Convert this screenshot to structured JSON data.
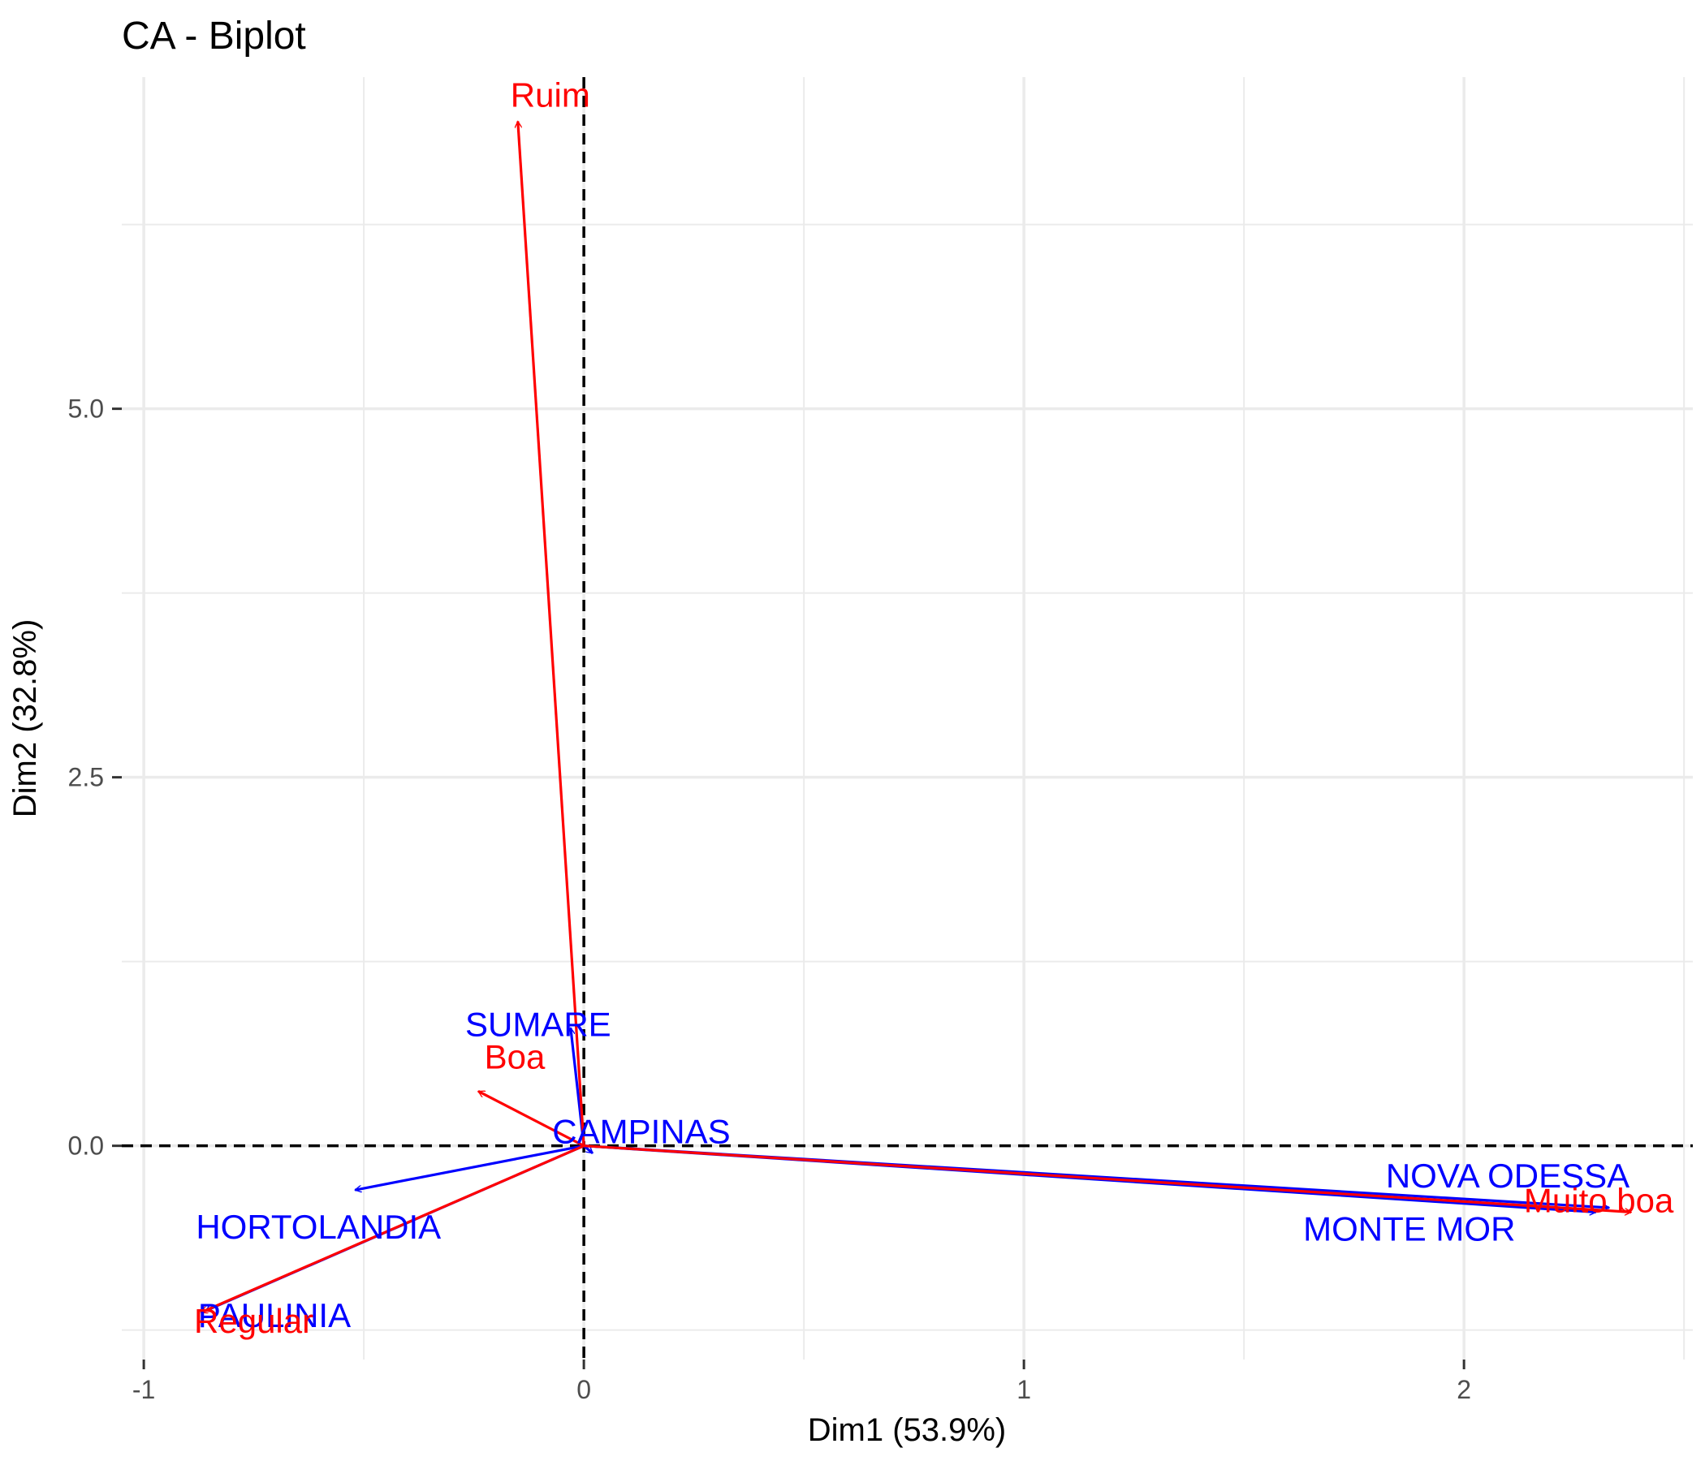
{
  "chart_data": {
    "type": "scatter",
    "title": "CA - Biplot",
    "xlabel": "Dim1 (53.9%)",
    "ylabel": "Dim2 (32.8%)",
    "xlim": [
      -1.05,
      2.52
    ],
    "ylim": [
      -1.45,
      7.25
    ],
    "x_ticks": [
      -1,
      0,
      1,
      2
    ],
    "x_tick_labels": [
      "-1",
      "0",
      "1",
      "2"
    ],
    "y_ticks": [
      0.0,
      2.5,
      5.0
    ],
    "y_tick_labels": [
      "0.0",
      "2.5",
      "5.0"
    ],
    "grid": true,
    "reference_lines": {
      "x": 0,
      "y": 0,
      "style": "dashed"
    },
    "colors": {
      "rows": "#0000ff",
      "cols": "#ff0000",
      "grid": "#ebebeb",
      "reference": "#000000"
    },
    "series": [
      {
        "color": "#0000ff",
        "points": [
          {
            "label": "SUMARE",
            "x": -0.03,
            "y": 0.8
          },
          {
            "label": "CAMPINAS",
            "x": 0.02,
            "y": -0.05
          },
          {
            "label": "HORTOLANDIA",
            "x": -0.52,
            "y": -0.3
          },
          {
            "label": "PAULINIA",
            "x": -0.86,
            "y": -1.12
          },
          {
            "label": "NOVA ODESSA",
            "x": 2.33,
            "y": -0.42
          },
          {
            "label": "MONTE MOR",
            "x": 2.3,
            "y": -0.45
          }
        ]
      },
      {
        "color": "#ff0000",
        "points": [
          {
            "label": "Ruim",
            "x": -0.15,
            "y": 6.95
          },
          {
            "label": "Boa",
            "x": -0.24,
            "y": 0.37
          },
          {
            "label": "Regular",
            "x": -0.87,
            "y": -1.13
          },
          {
            "label": "Muito boa",
            "x": 2.38,
            "y": -0.45
          }
        ]
      }
    ]
  }
}
